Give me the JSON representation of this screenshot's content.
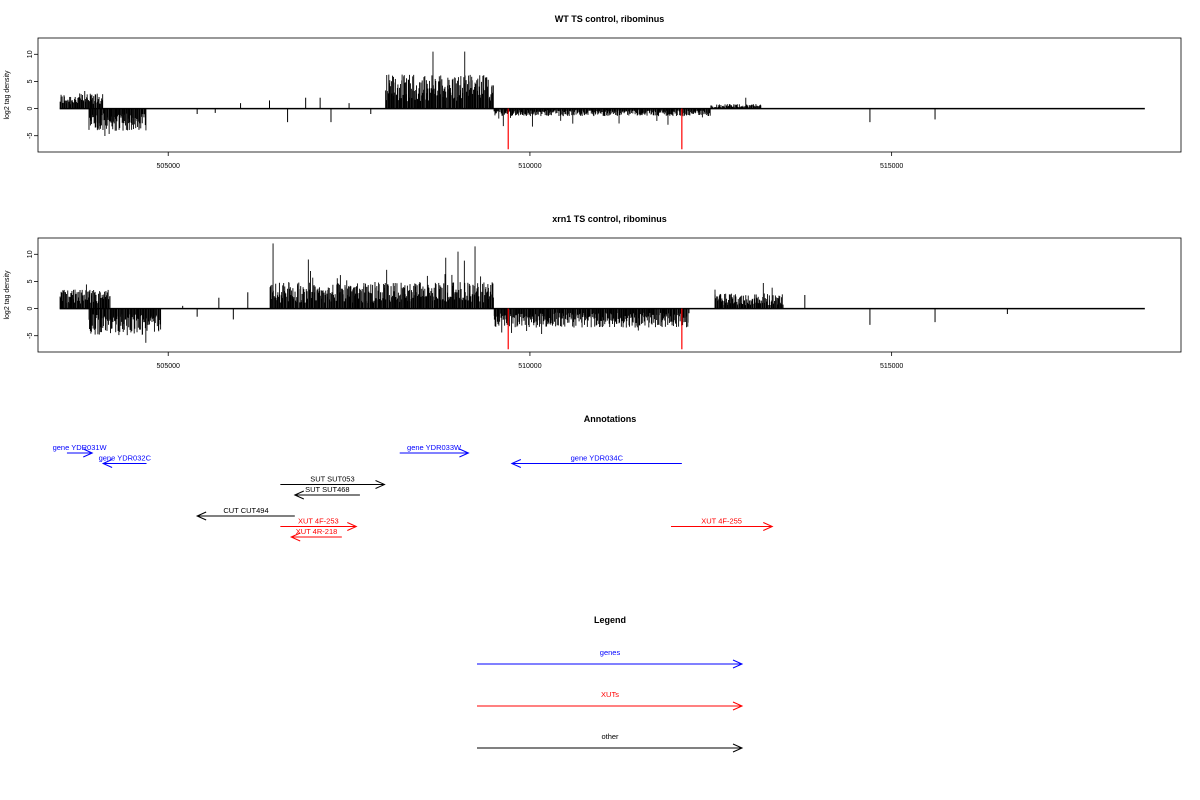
{
  "chart_data": [
    {
      "type": "bar",
      "title": "WT TS control, ribominus",
      "ylabel": "log2 tag density",
      "xlabel": "",
      "xlim": [
        503200,
        519000
      ],
      "ylim": [
        -8,
        13
      ],
      "x_ticks": [
        505000,
        510000,
        515000
      ],
      "x_tick_labels": [
        "505000",
        "510000",
        "515000"
      ],
      "y_ticks": [
        -5,
        0,
        5,
        10
      ],
      "y_tick_labels": [
        "-5",
        "0",
        "5",
        "10"
      ],
      "grid": false,
      "legend": "none",
      "baseline": {
        "start": 503500,
        "end": 518500
      },
      "highlight_lines": [
        {
          "x": 509700,
          "y": -7.5,
          "color": "#ff0000"
        },
        {
          "x": 512100,
          "y": -7.5,
          "color": "#ff0000"
        }
      ],
      "plus_strand_regions": [
        {
          "start": 503500,
          "end": 504100,
          "avg": 2.0,
          "max": 3.5
        },
        {
          "start": 508000,
          "end": 509500,
          "avg": 4.5,
          "max": 10.5
        },
        {
          "start": 512500,
          "end": 513200,
          "avg": 0.6,
          "max": 2.0
        }
      ],
      "minus_strand_regions": [
        {
          "start": 503900,
          "end": 504700,
          "avg": -3.0,
          "max": -6.0
        },
        {
          "start": 509500,
          "end": 512500,
          "avg": -1.0,
          "max": -3.5
        }
      ],
      "scattered_peaks": [
        {
          "x": 505400,
          "y": -1.0
        },
        {
          "x": 505650,
          "y": -0.8
        },
        {
          "x": 506000,
          "y": 1.0
        },
        {
          "x": 506400,
          "y": 1.5
        },
        {
          "x": 506650,
          "y": -2.5
        },
        {
          "x": 506900,
          "y": 2.0
        },
        {
          "x": 507100,
          "y": 2.0
        },
        {
          "x": 507250,
          "y": -2.5
        },
        {
          "x": 507500,
          "y": 1.0
        },
        {
          "x": 507800,
          "y": -1.0
        },
        {
          "x": 514700,
          "y": -2.5
        },
        {
          "x": 515600,
          "y": -2.0
        }
      ]
    },
    {
      "type": "bar",
      "title": "xrn1 TS control, ribominus",
      "ylabel": "log2 tag density",
      "xlabel": "",
      "xlim": [
        503200,
        519000
      ],
      "ylim": [
        -8,
        13
      ],
      "x_ticks": [
        505000,
        510000,
        515000
      ],
      "x_tick_labels": [
        "505000",
        "510000",
        "515000"
      ],
      "y_ticks": [
        -5,
        0,
        5,
        10
      ],
      "y_tick_labels": [
        "-5",
        "0",
        "5",
        "10"
      ],
      "grid": false,
      "legend": "none",
      "baseline": {
        "start": 503500,
        "end": 518500
      },
      "highlight_lines": [
        {
          "x": 509700,
          "y": -7.5,
          "color": "#ff0000"
        },
        {
          "x": 512100,
          "y": -7.5,
          "color": "#ff0000"
        }
      ],
      "plus_strand_regions": [
        {
          "start": 503500,
          "end": 504200,
          "avg": 2.5,
          "max": 6.0
        },
        {
          "start": 506400,
          "end": 509500,
          "avg": 3.5,
          "max": 12.0
        },
        {
          "start": 512550,
          "end": 513500,
          "avg": 2.0,
          "max": 5.0
        }
      ],
      "minus_strand_regions": [
        {
          "start": 503900,
          "end": 504900,
          "avg": -3.5,
          "max": -7.5
        },
        {
          "start": 509500,
          "end": 512200,
          "avg": -2.5,
          "max": -6.0
        }
      ],
      "scattered_peaks": [
        {
          "x": 505200,
          "y": 0.5
        },
        {
          "x": 505400,
          "y": -1.5
        },
        {
          "x": 505700,
          "y": 2.0
        },
        {
          "x": 505900,
          "y": -2.0
        },
        {
          "x": 506100,
          "y": 3.0
        },
        {
          "x": 513800,
          "y": 2.5
        },
        {
          "x": 514700,
          "y": -3.0
        },
        {
          "x": 515600,
          "y": -2.5
        },
        {
          "x": 516600,
          "y": -1.0
        }
      ]
    }
  ],
  "annotations": {
    "title": "Annotations",
    "items": [
      {
        "label": "gene YDR031W",
        "start": 503600,
        "end": 503950,
        "row": 0,
        "dir": "right",
        "color": "#0000ff"
      },
      {
        "label": "gene YDR032C",
        "start": 504100,
        "end": 504700,
        "row": 1,
        "dir": "left",
        "color": "#0000ff"
      },
      {
        "label": "gene YDR033W",
        "start": 508200,
        "end": 509150,
        "row": 0,
        "dir": "right",
        "color": "#0000ff"
      },
      {
        "label": "gene YDR034C",
        "start": 509750,
        "end": 512100,
        "row": 1,
        "dir": "left",
        "color": "#0000ff"
      },
      {
        "label": "SUT SUT053",
        "start": 506550,
        "end": 507990,
        "row": 3,
        "dir": "right",
        "color": "#000000"
      },
      {
        "label": "SUT SUT468",
        "start": 506750,
        "end": 507650,
        "row": 4,
        "dir": "left",
        "color": "#000000"
      },
      {
        "label": "CUT CUT494",
        "start": 505400,
        "end": 506750,
        "row": 6,
        "dir": "left",
        "color": "#000000"
      },
      {
        "label": "XUT 4F-253",
        "start": 506550,
        "end": 507600,
        "row": 7,
        "dir": "right",
        "color": "#ff0000"
      },
      {
        "label": "XUT 4R-218",
        "start": 506700,
        "end": 507400,
        "row": 8,
        "dir": "left",
        "color": "#ff0000"
      },
      {
        "label": "XUT 4F-255",
        "start": 511950,
        "end": 513350,
        "row": 7,
        "dir": "right",
        "color": "#ff0000"
      }
    ]
  },
  "legend": {
    "title": "Legend",
    "items": [
      {
        "label": "genes",
        "color": "#0000ff"
      },
      {
        "label": "XUTs",
        "color": "#ff0000"
      },
      {
        "label": "other",
        "color": "#000000"
      }
    ]
  }
}
